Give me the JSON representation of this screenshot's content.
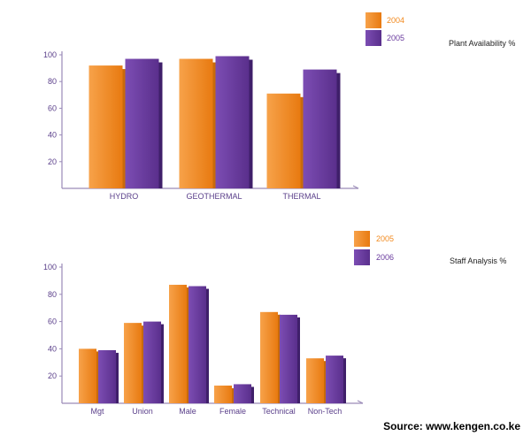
{
  "colors": {
    "series_a": "#f28a1f",
    "series_b": "#6a3b9e",
    "axis": "#9a8ab8",
    "tick_text": "#5a3f8a",
    "title_text": "#222222"
  },
  "source_text": "Source: www.kengen.co.ke",
  "chart_data": [
    {
      "type": "bar",
      "title": "Plant Availability %",
      "categories": [
        "HYDRO",
        "GEOTHERMAL",
        "THERMAL"
      ],
      "series": [
        {
          "name": "2004",
          "values": [
            92,
            97,
            71
          ]
        },
        {
          "name": "2005",
          "values": [
            97,
            99,
            89
          ]
        }
      ],
      "ylim": [
        0,
        100
      ],
      "yticks": [
        20,
        40,
        60,
        80,
        100
      ],
      "xlabel": "",
      "ylabel": "",
      "grid": false,
      "legend": "top-right"
    },
    {
      "type": "bar",
      "title": "Staff Analysis %",
      "categories": [
        "Mgt",
        "Union",
        "Male",
        "Female",
        "Technical",
        "Non-Tech"
      ],
      "series": [
        {
          "name": "2005",
          "values": [
            40,
            59,
            87,
            13,
            67,
            33
          ]
        },
        {
          "name": "2006",
          "values": [
            39,
            60,
            86,
            14,
            65,
            35
          ]
        }
      ],
      "ylim": [
        0,
        100
      ],
      "yticks": [
        20,
        40,
        60,
        80,
        100
      ],
      "xlabel": "",
      "ylabel": "",
      "grid": false,
      "legend": "top-right"
    }
  ]
}
